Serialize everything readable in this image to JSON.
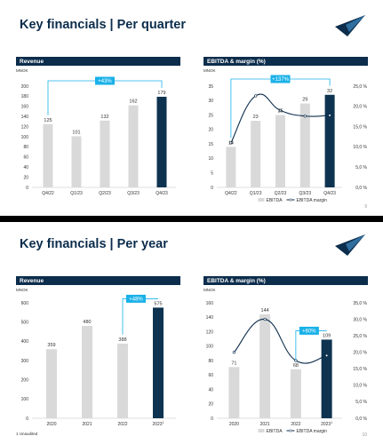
{
  "slides": [
    {
      "title": "Key financials | Per quarter",
      "page": "9",
      "footnote": ""
    },
    {
      "title": "Key financials | Per year",
      "page": "10",
      "footnote": "1 Unaudited"
    }
  ],
  "colors": {
    "navy": "#0c2d4c",
    "dark_bar": "#0d3350",
    "grey_bar": "#d9d9d9",
    "accent": "#1ab1e8"
  },
  "chart_data": [
    {
      "type": "bar",
      "title": "Revenue",
      "unit_label": "MNOK",
      "categories": [
        "Q4/22",
        "Q1/23",
        "Q2/23",
        "Q3/23",
        "Q4/23"
      ],
      "values": [
        125,
        101,
        132,
        162,
        179
      ],
      "highlight_index": 4,
      "ylim": [
        0,
        200
      ],
      "yticks": [
        0,
        20,
        40,
        60,
        80,
        100,
        120,
        140,
        160,
        180,
        200
      ],
      "annotation": {
        "text": "+43%",
        "from_index": 0,
        "to_index": 4
      }
    },
    {
      "type": "bar+line",
      "title": "EBITDA & margin (%)",
      "unit_label": "MNOK",
      "categories": [
        "Q4/22",
        "Q1/23",
        "Q2/23",
        "Q3/23",
        "Q4/23"
      ],
      "values": [
        14,
        23,
        25,
        29,
        32
      ],
      "highlight_index": 4,
      "ylim": [
        0,
        35
      ],
      "yticks": [
        0,
        5,
        10,
        15,
        20,
        25,
        30,
        35
      ],
      "margin": [
        11.0,
        22.6,
        19.0,
        17.6,
        17.8
      ],
      "y2lim": [
        0,
        25
      ],
      "y2ticks": [
        "0,0 %",
        "5,0 %",
        "10,0 %",
        "15,0 %",
        "20,0 %",
        "25,0 %"
      ],
      "legend": [
        "EBITDA",
        "EBITDA margin"
      ],
      "annotation": {
        "text": "+137%",
        "from_index": 0,
        "to_index": 4
      }
    },
    {
      "type": "bar",
      "title": "Revenue",
      "unit_label": "MNOK",
      "categories": [
        "2020",
        "2021",
        "2022",
        "2023"
      ],
      "category_suffix": [
        "",
        "",
        "",
        "1"
      ],
      "values": [
        359,
        480,
        388,
        575
      ],
      "highlight_index": 3,
      "ylim": [
        0,
        600
      ],
      "yticks": [
        0,
        100,
        200,
        300,
        400,
        500,
        600
      ],
      "annotation": {
        "text": "+48%",
        "from_index": 2,
        "to_index": 3
      }
    },
    {
      "type": "bar+line",
      "title": "EBITDA & margin (%)",
      "unit_label": "MNOK",
      "categories": [
        "2020",
        "2021",
        "2022",
        "2023"
      ],
      "category_suffix": [
        "",
        "",
        "",
        "1"
      ],
      "values": [
        71,
        144,
        68,
        109
      ],
      "highlight_index": 3,
      "ylim": [
        0,
        160
      ],
      "yticks": [
        0,
        20,
        40,
        60,
        80,
        100,
        120,
        140,
        160
      ],
      "margin": [
        20.0,
        30.0,
        17.5,
        19.0
      ],
      "y2lim": [
        0,
        35
      ],
      "y2ticks": [
        "0,0 %",
        "5,0 %",
        "10,0 %",
        "15,0 %",
        "20,0 %",
        "25,0 %",
        "30,0 %",
        "35,0 %"
      ],
      "legend": [
        "EBITDA",
        "EBITDA margin"
      ],
      "annotation": {
        "text": "+60%",
        "from_index": 2,
        "to_index": 3
      }
    }
  ]
}
